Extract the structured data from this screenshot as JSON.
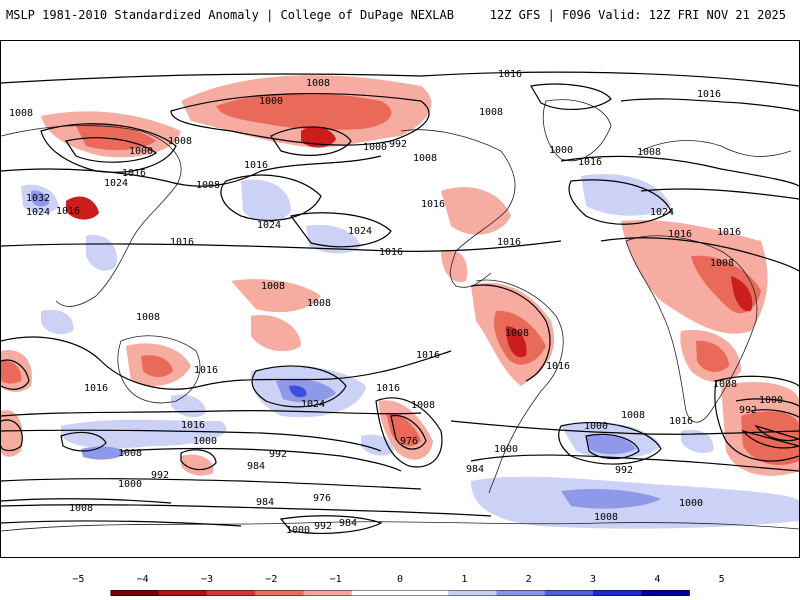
{
  "header": {
    "title_left": "MSLP 1981-2010 Standardized Anomaly | College of DuPage NEXLAB",
    "title_right": "12Z GFS | F096 Valid: 12Z FRI NOV 21 2025"
  },
  "map": {
    "projection": "global cylindrical",
    "isobar_labels": [
      "1008",
      "1000",
      "1016",
      "1008",
      "1008",
      "1000",
      "1008",
      "1016",
      "1024",
      "1032",
      "1024",
      "1016",
      "1000",
      "1016",
      "1008",
      "992",
      "1000",
      "1008",
      "1016",
      "1024",
      "1016",
      "1008",
      "1016",
      "1024",
      "1016",
      "1016",
      "1008",
      "1016",
      "1016",
      "1024",
      "1016",
      "1016",
      "1008",
      "1008",
      "1008",
      "1008",
      "1008",
      "1016",
      "1016",
      "1008",
      "1024",
      "1016",
      "1016",
      "1008",
      "1000",
      "992",
      "1000",
      "984",
      "976",
      "984",
      "992",
      "1008",
      "1016",
      "1000",
      "1000",
      "992",
      "984",
      "976",
      "992",
      "1000",
      "1008",
      "1016",
      "984",
      "992",
      "1000",
      "1000",
      "1008"
    ],
    "colors": {
      "neg_strong": "#cc1d1d",
      "neg_mid": "#ea6a5a",
      "neg_weak": "#f7aca2",
      "pos_weak": "#ccd2f5",
      "pos_mid": "#8f99ea",
      "pos_strong": "#3d4fe0",
      "isobar": "#000000",
      "coast": "#222222"
    }
  },
  "colorbar": {
    "ticks": [
      "−5",
      "−4",
      "−3",
      "−2",
      "−1",
      "0",
      "1",
      "2",
      "3",
      "4",
      "5"
    ],
    "colors": [
      "#7a0000",
      "#b50f0f",
      "#d93434",
      "#e96b62",
      "#f5a79f",
      "#ffffff",
      "#ffffff",
      "#c7cdf4",
      "#8a95ea",
      "#4d5ee3",
      "#1a27d8",
      "#0000a0"
    ]
  }
}
